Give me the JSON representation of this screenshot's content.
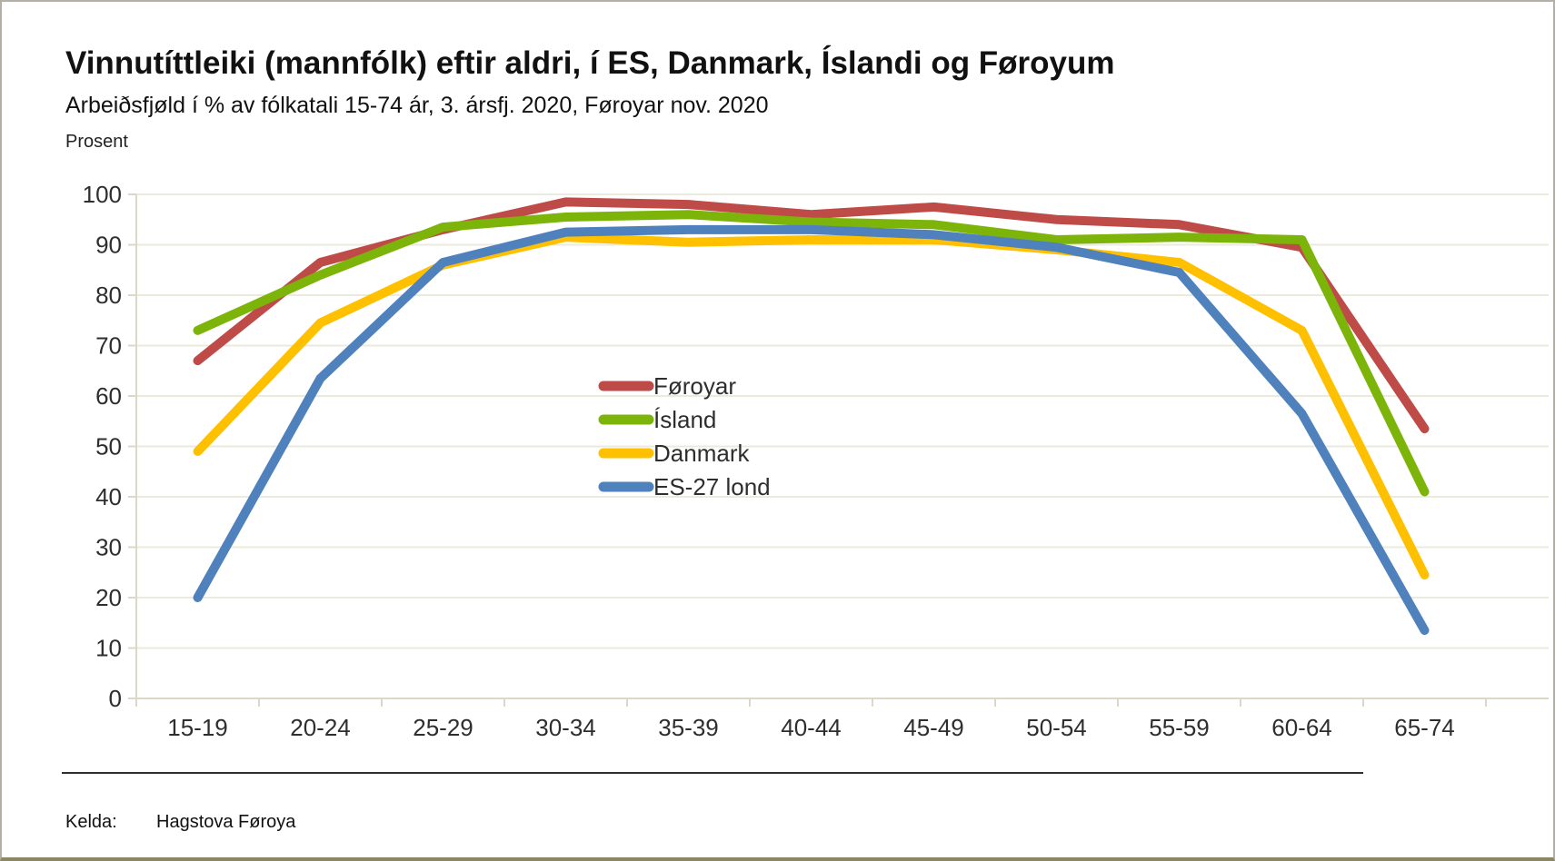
{
  "header": {
    "title": "Vinnutíttleiki (mannfólk) eftir aldri, í ES, Danmark, Íslandi og Føroyum",
    "subtitle": "Arbeiðsfjøld í % av fólkatali 15-74 ár, 3. ársfj. 2020, Føroyar nov. 2020"
  },
  "footer": {
    "kelda_label": "Kelda:",
    "source": "Hagstova Føroya"
  },
  "colors": {
    "gridline": "#ece9dd",
    "axis": "#dbd8c8",
    "page_border": "#b3afa2",
    "bottom_bar": "#8b8663",
    "divider": "#2e2e2e",
    "label_text": "#2e2e2e"
  },
  "chart_data": {
    "type": "line",
    "title": "Vinnutíttleiki (mannfólk) eftir aldri, í ES, Danmark, Íslandi og Føroyum",
    "subtitle": "Arbeiðsfjøld í % av fólkatali 15-74 ár, 3. ársfj. 2020, Føroyar nov. 2020",
    "ylabel": "Prosent",
    "xlabel": "",
    "ylim": [
      0,
      100
    ],
    "ytick_step": 10,
    "grid": true,
    "legend_position": "center",
    "categories": [
      "15-19",
      "20-24",
      "25-29",
      "30-34",
      "35-39",
      "40-44",
      "45-49",
      "50-54",
      "55-59",
      "60-64",
      "65-74"
    ],
    "series": [
      {
        "name": "Føroyar",
        "color": "#be4b48",
        "values": [
          67,
          86.5,
          93,
          98.5,
          98,
          96,
          97.5,
          95,
          94,
          89.5,
          53.5
        ]
      },
      {
        "name": "Ísland",
        "color": "#7cb40a",
        "values": [
          73,
          84,
          93.5,
          95.5,
          96,
          94.5,
          94,
          91,
          91.5,
          91,
          41
        ]
      },
      {
        "name": "Danmark",
        "color": "#ffc000",
        "values": [
          49,
          74.5,
          86,
          91.5,
          90.5,
          91,
          91,
          89,
          86.5,
          73,
          24.5
        ]
      },
      {
        "name": "ES-27 lond",
        "color": "#4f81bd",
        "values": [
          20,
          63.5,
          86.5,
          92.5,
          93,
          93,
          92,
          89.5,
          84.5,
          56.5,
          13.5
        ]
      }
    ]
  }
}
